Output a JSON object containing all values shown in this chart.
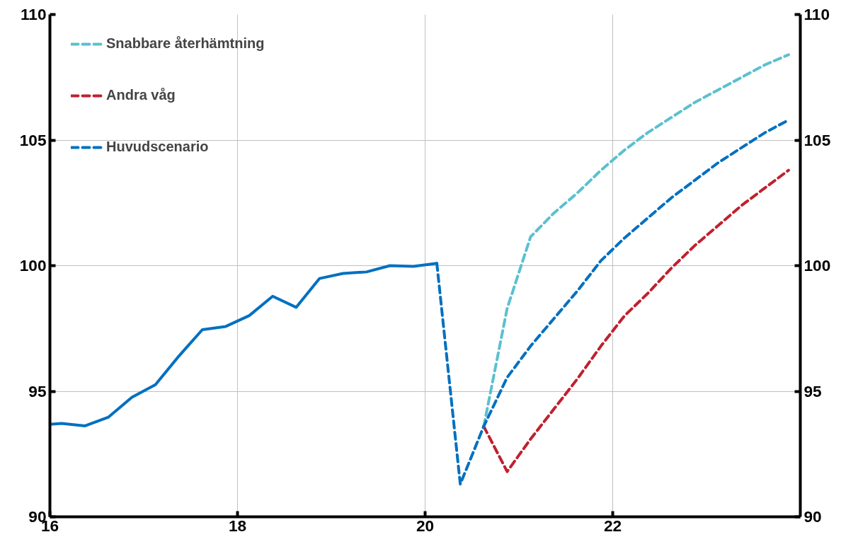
{
  "chart_data": {
    "type": "line",
    "xlim": [
      16,
      24
    ],
    "xticks": [
      16,
      18,
      20,
      22
    ],
    "ylim": [
      90,
      110
    ],
    "yticks": [
      90,
      95,
      100,
      105,
      110
    ],
    "y2lim": [
      90,
      110
    ],
    "y2ticks": [
      90,
      95,
      100,
      105,
      110
    ],
    "grid": true,
    "legend": "top left",
    "series": [
      {
        "color": "#0070c0",
        "line_style": "solid",
        "x": [
          16.0,
          16.125,
          16.375,
          16.625,
          16.875,
          17.125,
          17.375,
          17.625,
          17.875,
          18.125,
          18.375,
          18.625,
          18.875,
          19.125,
          19.375,
          19.625,
          19.875,
          20.125
        ],
        "values": [
          93.68,
          93.72,
          93.62,
          93.97,
          94.76,
          95.26,
          96.4,
          97.45,
          97.58,
          98.01,
          98.78,
          98.34,
          99.49,
          99.69,
          99.75,
          100.0,
          99.97,
          100.09
        ]
      },
      {
        "name": "Snabbare återhämtning",
        "color": "#5bc0d0",
        "line_style": "dashed",
        "x": [
          20.625,
          20.875,
          21.125,
          21.375,
          21.625,
          21.875,
          22.125,
          22.375,
          22.625,
          22.875,
          23.125,
          23.375,
          23.625,
          23.875
        ],
        "values": [
          93.6,
          98.3,
          101.15,
          102.1,
          102.9,
          103.8,
          104.6,
          105.3,
          105.9,
          106.5,
          107.0,
          107.5,
          108.0,
          108.4
        ]
      },
      {
        "name": "Andra våg",
        "color": "#c0202e",
        "line_style": "dashed",
        "x": [
          20.625,
          20.875,
          21.125,
          21.375,
          21.625,
          21.875,
          22.125,
          22.375,
          22.625,
          22.875,
          23.125,
          23.375,
          23.625,
          23.875
        ],
        "values": [
          93.6,
          91.8,
          93.1,
          94.3,
          95.5,
          96.8,
          98.0,
          98.9,
          99.9,
          100.8,
          101.6,
          102.4,
          103.1,
          103.8
        ]
      },
      {
        "name": "Huvudscenario",
        "color": "#0070c0",
        "line_style": "dashed",
        "x": [
          20.125,
          20.375,
          20.625,
          20.875,
          21.125,
          21.375,
          21.625,
          21.875,
          22.125,
          22.375,
          22.625,
          22.875,
          23.125,
          23.375,
          23.625,
          23.875
        ],
        "values": [
          100.09,
          91.3,
          93.6,
          95.55,
          96.8,
          97.9,
          99.0,
          100.2,
          101.1,
          101.9,
          102.7,
          103.4,
          104.1,
          104.7,
          105.3,
          105.8
        ]
      }
    ]
  }
}
